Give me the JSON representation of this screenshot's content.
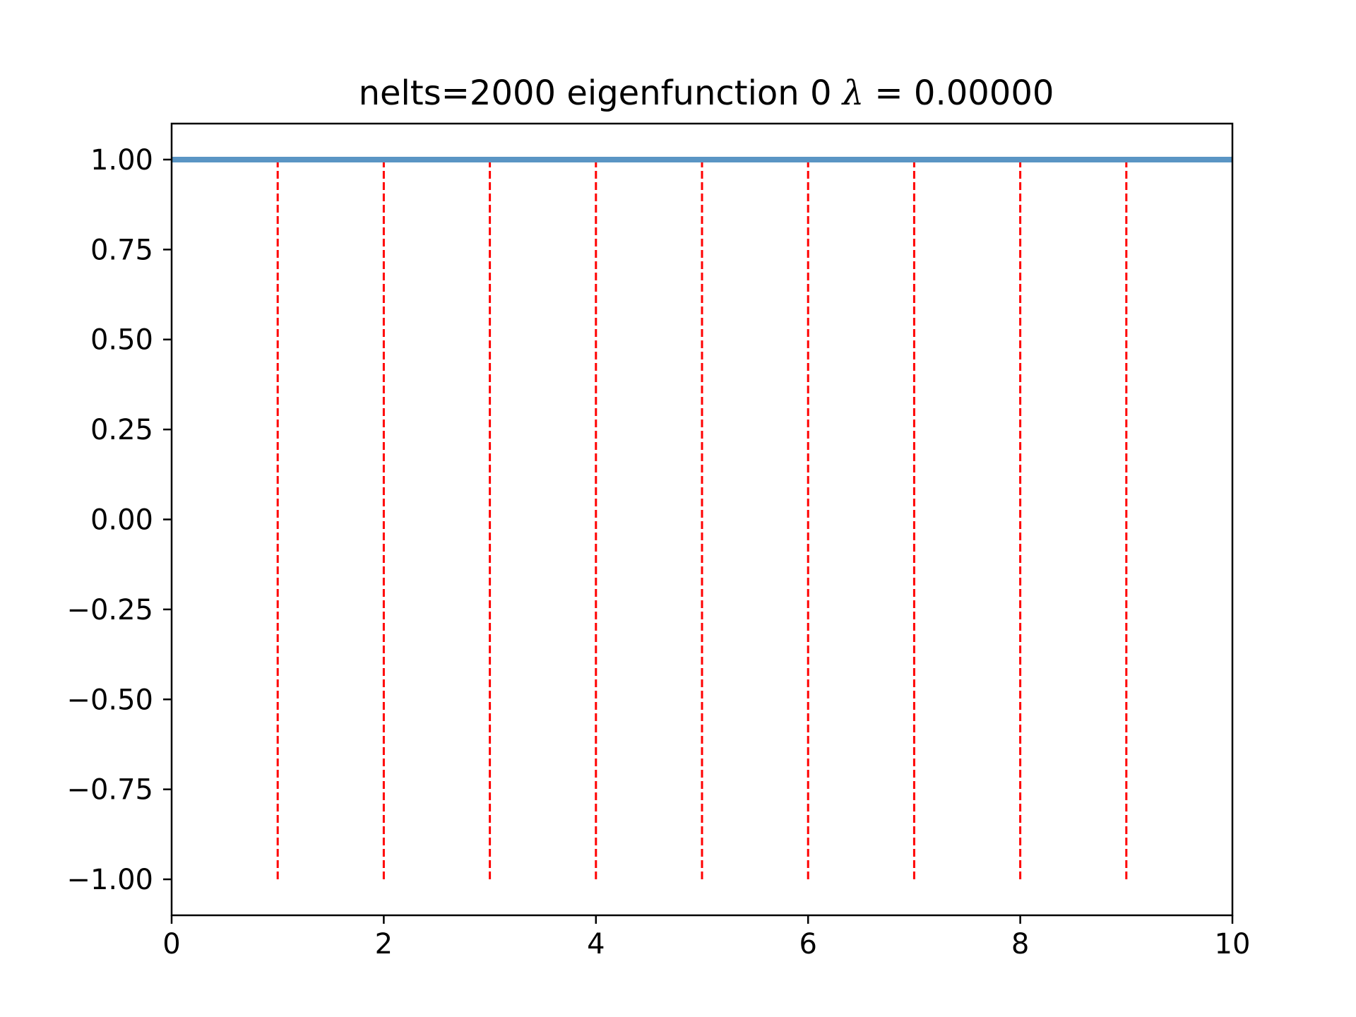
{
  "chart_data": {
    "type": "line",
    "title": {
      "prefix": "nelts=2000  eigenfunction 0  ",
      "symbol": "λ",
      "suffix": " = 0.00000"
    },
    "xlabel": "",
    "ylabel": "",
    "xlim": [
      0,
      10
    ],
    "ylim": [
      -1.1,
      1.1
    ],
    "x_ticks": [
      0,
      2,
      4,
      6,
      8,
      10
    ],
    "x_tick_labels": [
      "0",
      "2",
      "4",
      "6",
      "8",
      "10"
    ],
    "y_ticks": [
      1.0,
      0.75,
      0.5,
      0.25,
      0.0,
      -0.25,
      -0.5,
      -0.75,
      -1.0
    ],
    "y_tick_labels": [
      "1.00",
      "0.75",
      "0.50",
      "0.25",
      "0.00",
      "−0.25",
      "−0.50",
      "−0.75",
      "−1.00"
    ],
    "grid": false,
    "legend": "none",
    "series": [
      {
        "style": "solid",
        "color": "#5a95c4",
        "x": [
          0,
          10
        ],
        "y": [
          1.0,
          1.0
        ]
      }
    ],
    "vlines": {
      "style": "dashed",
      "color": "#ff0000",
      "x": [
        1,
        2,
        3,
        4,
        5,
        6,
        7,
        8,
        9
      ],
      "ymin": -1.0,
      "ymax": 1.0
    }
  }
}
